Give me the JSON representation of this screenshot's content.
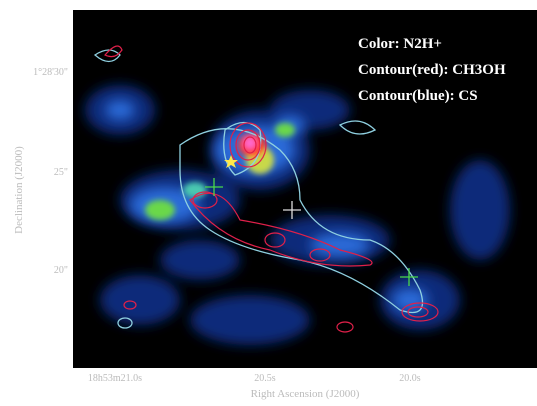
{
  "legend": {
    "color": "Color: N2H+",
    "contour_red": "Contour(red): CH3OH",
    "contour_blue": "Contour(blue): CS"
  },
  "x_axis": {
    "title": "Right Ascension (J2000)",
    "ticks": [
      "18h53m21.0s",
      "20.5s",
      "20.0s"
    ]
  },
  "y_axis": {
    "title": "Declination (J2000)",
    "ticks": [
      "1°28'30\"",
      "25\"",
      "20\""
    ]
  }
}
